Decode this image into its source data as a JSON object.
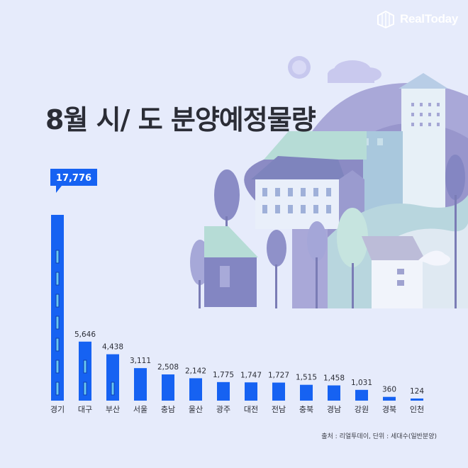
{
  "brand": {
    "name": "RealToday"
  },
  "title": "8월 시/ 도 분양예정물량",
  "source": "출처 : 리얼투데이, 단위 : 세대수(일반분양)",
  "colors": {
    "background": "#e6ebfb",
    "bar": "#1662f2",
    "bar_accent": "#68c7f2",
    "title": "#2b2d36"
  },
  "chart_data": {
    "type": "bar",
    "title": "8월 시/ 도 분양예정물량",
    "categories": [
      "경기",
      "대구",
      "부산",
      "서울",
      "충남",
      "울산",
      "광주",
      "대전",
      "전남",
      "충북",
      "경남",
      "강원",
      "경북",
      "인천"
    ],
    "values": [
      17776,
      5646,
      4438,
      3111,
      2508,
      2142,
      1775,
      1747,
      1727,
      1515,
      1458,
      1031,
      360,
      124
    ],
    "value_labels": [
      "17,776",
      "5,646",
      "4,438",
      "3,111",
      "2,508",
      "2,142",
      "1,775",
      "1,747",
      "1,727",
      "1,515",
      "1,458",
      "1,031",
      "360",
      "124"
    ],
    "highlight_index": 0,
    "xlabel": "",
    "ylabel": "",
    "ylim": [
      0,
      17776
    ],
    "grid": false,
    "legend": "none"
  }
}
